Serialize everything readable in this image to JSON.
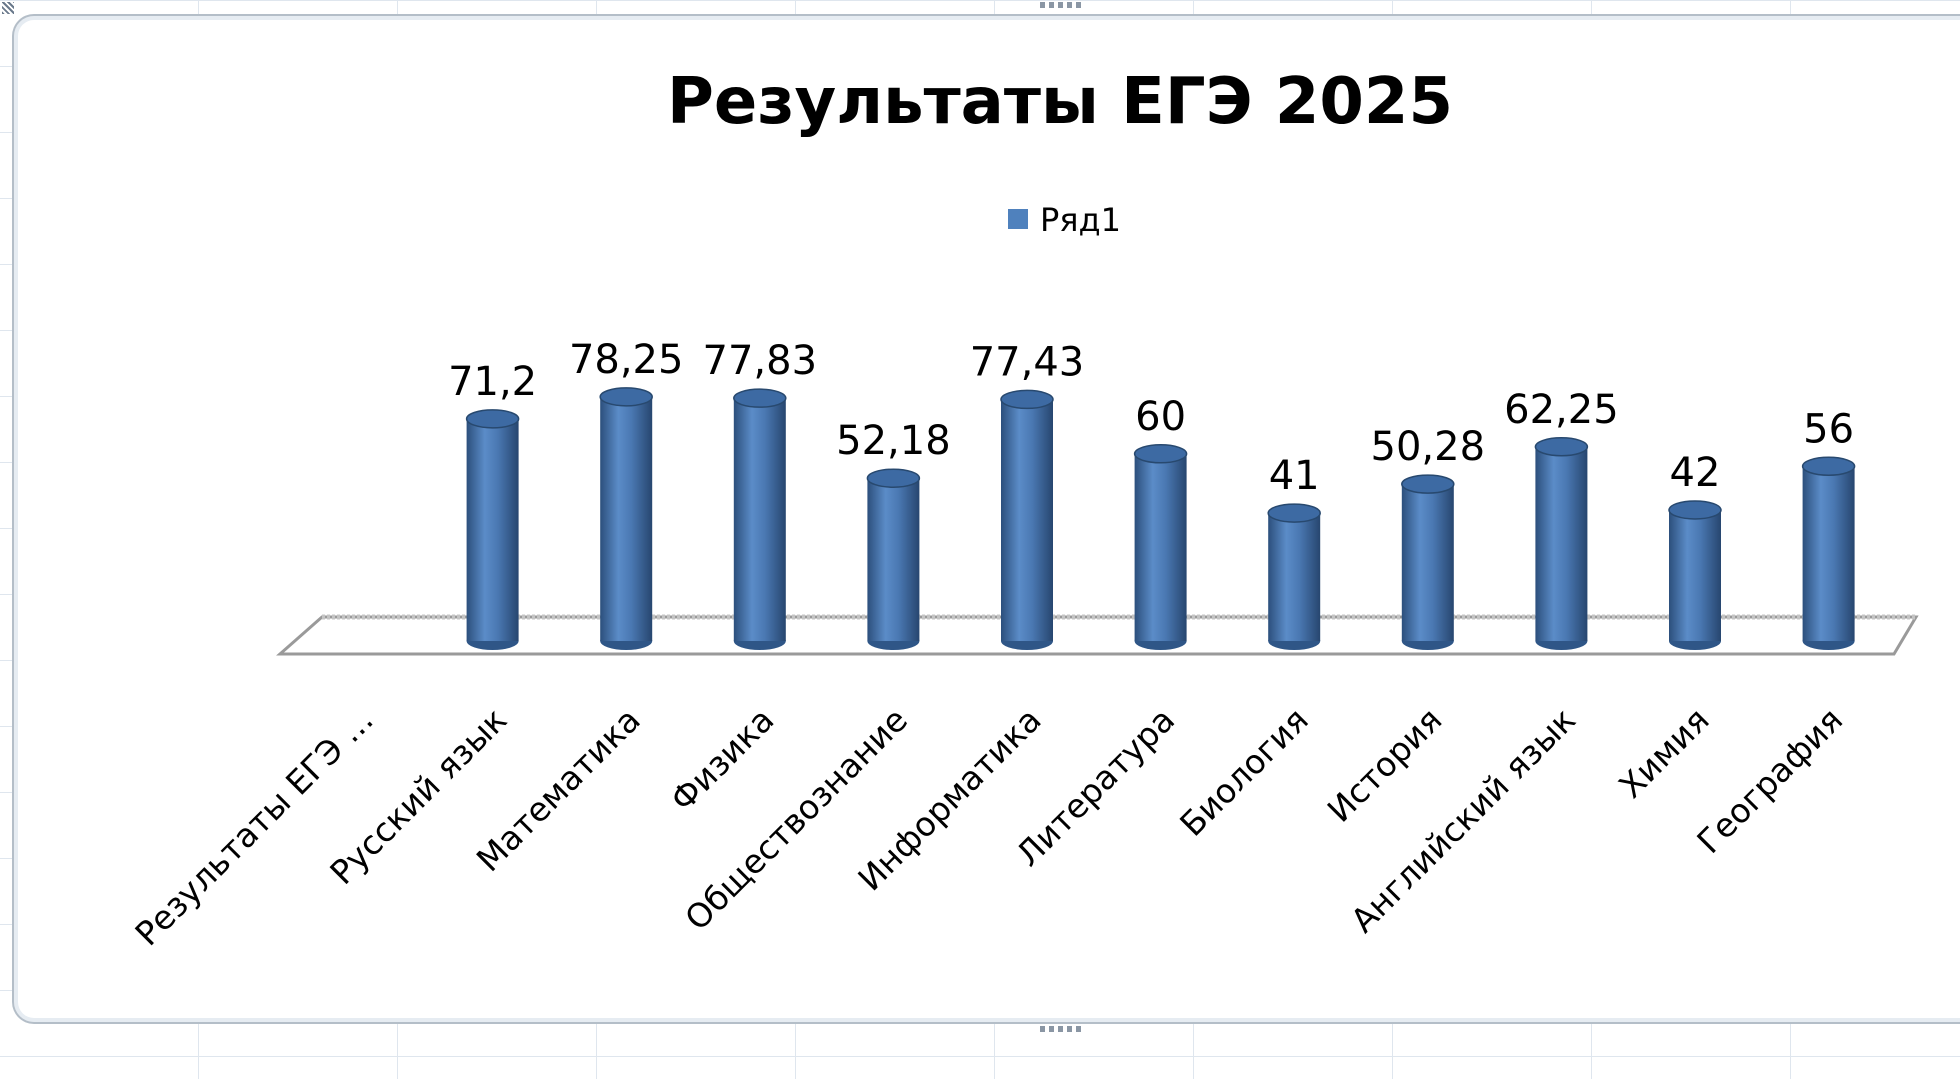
{
  "chart_data": {
    "type": "bar",
    "title": "Результаты ЕГЭ 2025",
    "categories": [
      "Результаты ЕГЭ ...",
      "Русский язык",
      "Математика",
      "Физика",
      "Обществознание",
      "Информатика",
      "Литература",
      "Биология",
      "История",
      "Английский язык",
      "Химия",
      "География"
    ],
    "series": [
      {
        "name": "Ряд1",
        "values": [
          null,
          71.2,
          78.25,
          77.83,
          52.18,
          77.43,
          60,
          41,
          50.28,
          62.25,
          42,
          56
        ],
        "color": "#4f81bd"
      }
    ],
    "data_labels": [
      "",
      "71,2",
      "78,25",
      "77,83",
      "52,18",
      "77,43",
      "60",
      "41",
      "50,28",
      "62,25",
      "42",
      "56"
    ],
    "legend_position": "top",
    "grid": false
  }
}
